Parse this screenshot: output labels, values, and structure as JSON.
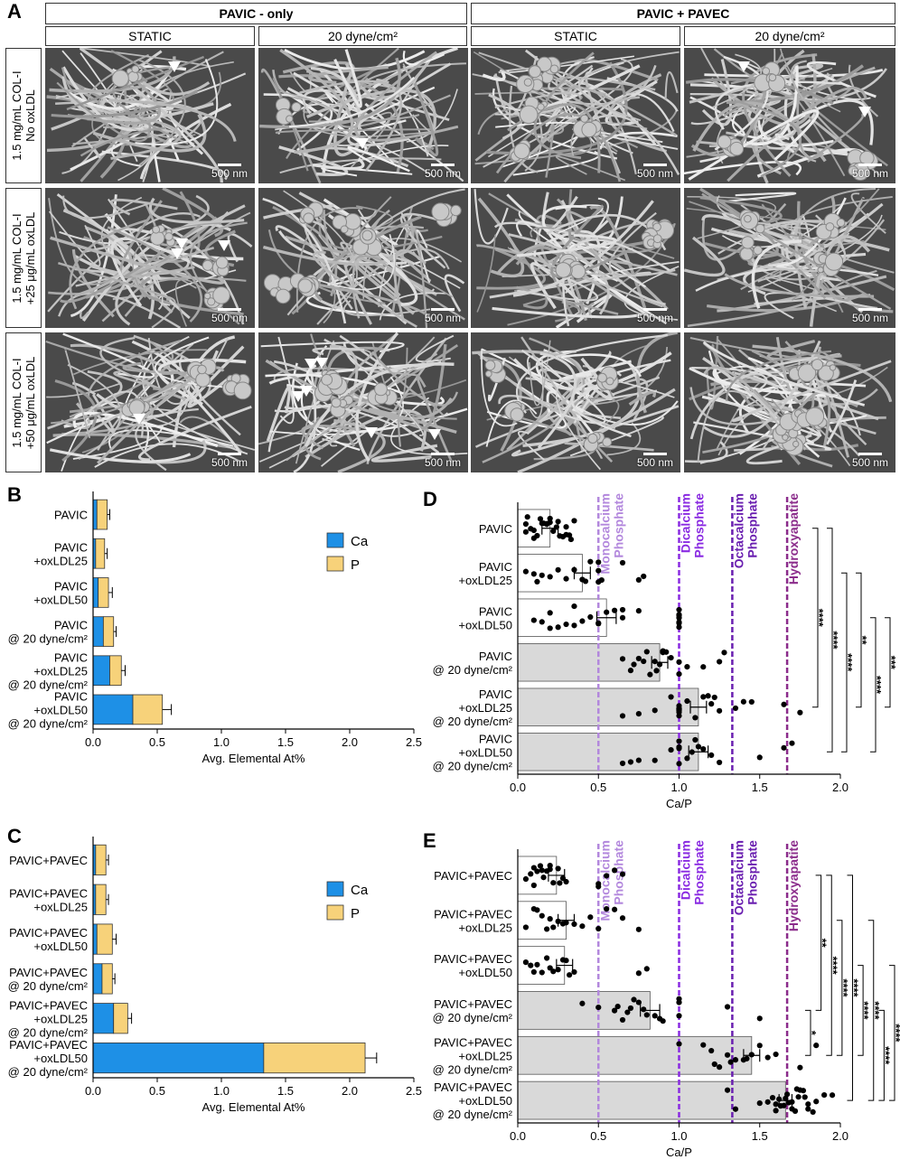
{
  "panels": {
    "a": "A",
    "b": "B",
    "c": "C",
    "d": "D",
    "e": "E"
  },
  "sem_grid": {
    "group_headers": [
      "PAVIC - only",
      "PAVIC + PAVEC"
    ],
    "condition_headers": [
      "STATIC",
      "20 dyne/cm²",
      "STATIC",
      "20 dyne/cm²"
    ],
    "row_labels": [
      [
        "1.5 mg/mL COL-I",
        "No oxLDL"
      ],
      [
        "1.5 mg/mL COL-I",
        "+25 μg/mL oxLDL"
      ],
      [
        "1.5 mg/mL COL-I",
        "+50 μg/mL oxLDL"
      ]
    ],
    "scale_bar": "500 nm",
    "arrowheads_per_image": [
      [
        1,
        1,
        0,
        2
      ],
      [
        3,
        0,
        0,
        0
      ],
      [
        1,
        6,
        0,
        0
      ]
    ]
  },
  "chart_data": [
    {
      "id": "B",
      "type": "bar",
      "orientation": "horizontal",
      "stacked": true,
      "categories": [
        [
          "PAVIC"
        ],
        [
          "PAVIC",
          "+oxLDL25"
        ],
        [
          "PAVIC",
          "+oxLDL50"
        ],
        [
          "PAVIC",
          "@ 20 dyne/cm²"
        ],
        [
          "PAVIC",
          "+oxLDL25",
          "@ 20 dyne/cm²"
        ],
        [
          "PAVIC",
          "+oxLDL50",
          "@ 20 dyne/cm²"
        ]
      ],
      "series": [
        {
          "name": "Ca",
          "color": "#1e90e6",
          "values": [
            0.03,
            0.02,
            0.04,
            0.08,
            0.13,
            0.31
          ],
          "error": [
            0.01,
            0.01,
            0.02,
            0.04,
            0.05,
            0.12
          ]
        },
        {
          "name": "P",
          "color": "#f7d27a",
          "values": [
            0.08,
            0.07,
            0.08,
            0.08,
            0.09,
            0.23
          ],
          "error": [
            0.02,
            0.02,
            0.03,
            0.02,
            0.03,
            0.07
          ]
        }
      ],
      "xlabel": "Avg. Elemental At%",
      "xlim": [
        0,
        2.5
      ],
      "xticks": [
        "0.0",
        "0.5",
        "1.0",
        "1.5",
        "2.0",
        "2.5"
      ],
      "legend": "right"
    },
    {
      "id": "C",
      "type": "bar",
      "orientation": "horizontal",
      "stacked": true,
      "categories": [
        [
          "PAVIC+PAVEC"
        ],
        [
          "PAVIC+PAVEC",
          "+oxLDL25"
        ],
        [
          "PAVIC+PAVEC",
          "+oxLDL50"
        ],
        [
          "PAVIC+PAVEC",
          "@ 20 dyne/cm²"
        ],
        [
          "PAVIC+PAVEC",
          "+oxLDL25",
          "@ 20 dyne/cm²"
        ],
        [
          "PAVIC+PAVEC",
          "+oxLDL50",
          "@ 20 dyne/cm²"
        ]
      ],
      "series": [
        {
          "name": "Ca",
          "color": "#1e90e6",
          "values": [
            0.02,
            0.02,
            0.03,
            0.07,
            0.16,
            1.33
          ],
          "error": [
            0.01,
            0.01,
            0.02,
            0.03,
            0.04,
            0.13
          ]
        },
        {
          "name": "P",
          "color": "#f7d27a",
          "values": [
            0.08,
            0.08,
            0.12,
            0.08,
            0.11,
            0.79
          ],
          "error": [
            0.02,
            0.02,
            0.03,
            0.02,
            0.03,
            0.09
          ]
        }
      ],
      "xlabel": "Avg. Elemental At%",
      "xlim": [
        0,
        2.5
      ],
      "xticks": [
        "0.0",
        "0.5",
        "1.0",
        "1.5",
        "2.0",
        "2.5"
      ],
      "legend": "right"
    },
    {
      "id": "D",
      "type": "bar",
      "orientation": "horizontal",
      "categories": [
        [
          "PAVIC"
        ],
        [
          "PAVIC",
          "+oxLDL25"
        ],
        [
          "PAVIC",
          "+oxLDL50"
        ],
        [
          "PAVIC",
          "@ 20 dyne/cm²"
        ],
        [
          "PAVIC",
          "+oxLDL25",
          "@ 20 dyne/cm²"
        ],
        [
          "PAVIC",
          "+oxLDL50",
          "@ 20 dyne/cm²"
        ]
      ],
      "bar_colors": [
        "#ffffff",
        "#ffffff",
        "#ffffff",
        "#d9d9d9",
        "#d9d9d9",
        "#d9d9d9"
      ],
      "means": [
        0.2,
        0.4,
        0.55,
        0.88,
        1.12,
        1.12
      ],
      "error": [
        0.05,
        0.05,
        0.06,
        0.05,
        0.05,
        0.06
      ],
      "points": [
        [
          0.05,
          0.1,
          0.15,
          0.2,
          0.25,
          0.3,
          0.35,
          0.05,
          0.12,
          0.18,
          0.22,
          0.28,
          0.33,
          0.08,
          0.16,
          0.24,
          0.3,
          0.1,
          0.2,
          0.26,
          0.14,
          0.32,
          0.06,
          0.18
        ],
        [
          0.05,
          0.1,
          0.15,
          0.2,
          0.3,
          0.35,
          0.42,
          0.45,
          0.5,
          0.5,
          0.5,
          0.65,
          0.75,
          0.78,
          0.12,
          0.25,
          0.4,
          0.52
        ],
        [
          0.1,
          0.15,
          0.2,
          0.25,
          0.3,
          0.35,
          0.4,
          0.45,
          0.5,
          0.55,
          0.6,
          0.65,
          0.75,
          1.0,
          1.0,
          1.0,
          1.0,
          1.0,
          1.0,
          1.0,
          0.2,
          0.35,
          0.5,
          0.65
        ],
        [
          0.65,
          0.7,
          0.75,
          0.8,
          0.85,
          0.86,
          0.88,
          0.9,
          0.92,
          0.95,
          1.0,
          1.0,
          1.05,
          1.15,
          1.25,
          1.28,
          0.72,
          0.78,
          0.82,
          0.9
        ],
        [
          0.65,
          0.75,
          0.85,
          0.95,
          1.0,
          1.0,
          1.0,
          1.0,
          1.0,
          1.0,
          1.0,
          1.0,
          1.1,
          1.15,
          1.2,
          1.25,
          1.35,
          1.4,
          1.45,
          1.65,
          1.75,
          1.05,
          1.18,
          1.22
        ],
        [
          0.65,
          0.7,
          0.75,
          0.85,
          0.95,
          1.0,
          1.0,
          1.0,
          1.0,
          1.05,
          1.1,
          1.15,
          1.2,
          1.25,
          1.5,
          1.65,
          1.7,
          1.08,
          1.12
        ]
      ],
      "reference_lines": [
        {
          "x": 0.5,
          "label": [
            "Monocalcium",
            "Phosphate"
          ],
          "color": "#b388dd"
        },
        {
          "x": 1.0,
          "label": [
            "Dicalcium",
            "Phosphate"
          ],
          "color": "#8a2be2"
        },
        {
          "x": 1.33,
          "label": [
            "Octacalcium",
            "Phosphate"
          ],
          "color": "#6a1fb0"
        },
        {
          "x": 1.67,
          "label": [
            "Hydroxyapatite"
          ],
          "color": "#8b2c8b"
        }
      ],
      "significance": [
        {
          "from": 0,
          "to": 4,
          "stars": "****"
        },
        {
          "from": 0,
          "to": 5,
          "stars": "****"
        },
        {
          "from": 1,
          "to": 5,
          "stars": "****"
        },
        {
          "from": 1,
          "to": 4,
          "stars": "**"
        },
        {
          "from": 2,
          "to": 5,
          "stars": "****"
        },
        {
          "from": 2,
          "to": 4,
          "stars": "***"
        }
      ],
      "xlabel": "Ca/P",
      "xlim": [
        0,
        2.0
      ],
      "xticks": [
        "0.0",
        "0.5",
        "1.0",
        "1.5",
        "2.0"
      ]
    },
    {
      "id": "E",
      "type": "bar",
      "orientation": "horizontal",
      "categories": [
        [
          "PAVIC+PAVEC"
        ],
        [
          "PAVIC+PAVEC",
          "+oxLDL25"
        ],
        [
          "PAVIC+PAVEC",
          "+oxLDL50"
        ],
        [
          "PAVIC+PAVEC",
          "@ 20 dyne/cm²"
        ],
        [
          "PAVIC+PAVEC",
          "+oxLDL25",
          "@ 20 dyne/cm²"
        ],
        [
          "PAVIC+PAVEC",
          "+oxLDL50",
          "@ 20 dyne/cm²"
        ]
      ],
      "bar_colors": [
        "#ffffff",
        "#ffffff",
        "#ffffff",
        "#d9d9d9",
        "#d9d9d9",
        "#d9d9d9"
      ],
      "means": [
        0.24,
        0.3,
        0.29,
        0.82,
        1.45,
        1.66
      ],
      "error": [
        0.05,
        0.05,
        0.05,
        0.06,
        0.05,
        0.04
      ],
      "points": [
        [
          0.05,
          0.1,
          0.15,
          0.2,
          0.25,
          0.3,
          0.1,
          0.18,
          0.22,
          0.12,
          0.28,
          0.5,
          0.5,
          0.55,
          0.6,
          0.65,
          0.08,
          0.16,
          0.2,
          0.26,
          0.14
        ],
        [
          0.05,
          0.1,
          0.15,
          0.2,
          0.25,
          0.3,
          0.35,
          0.4,
          0.45,
          0.5,
          0.55,
          0.6,
          0.65,
          0.75,
          0.12,
          0.22,
          0.28,
          0.18
        ],
        [
          0.05,
          0.1,
          0.15,
          0.2,
          0.25,
          0.3,
          0.32,
          0.35,
          0.75,
          0.8,
          0.12,
          0.22,
          0.28,
          0.18,
          0.08
        ],
        [
          0.4,
          0.5,
          0.6,
          0.65,
          0.7,
          0.75,
          0.8,
          0.85,
          0.9,
          1.0,
          1.0,
          1.0,
          1.3,
          1.5,
          0.62,
          0.72,
          0.78,
          0.88,
          0.68
        ],
        [
          1.0,
          1.15,
          1.2,
          1.25,
          1.3,
          1.35,
          1.4,
          1.45,
          1.5,
          1.55,
          1.6,
          1.75,
          1.85,
          1.22,
          1.32,
          1.42
        ],
        [
          1.3,
          1.35,
          1.5,
          1.55,
          1.6,
          1.62,
          1.65,
          1.68,
          1.7,
          1.72,
          1.75,
          1.78,
          1.8,
          1.85,
          1.9,
          1.95,
          1.58,
          1.63,
          1.67,
          1.73,
          1.77,
          1.83,
          1.6,
          1.7,
          1.8,
          1.66,
          1.74
        ]
      ],
      "reference_lines": [
        {
          "x": 0.5,
          "label": [
            "Monocalcium",
            "Phosphate"
          ],
          "color": "#b388dd"
        },
        {
          "x": 1.0,
          "label": [
            "Dicalcium",
            "Phosphate"
          ],
          "color": "#8a2be2"
        },
        {
          "x": 1.33,
          "label": [
            "Octacalcium",
            "Phosphate"
          ],
          "color": "#6a1fb0"
        },
        {
          "x": 1.67,
          "label": [
            "Hydroxyapatite"
          ],
          "color": "#8b2c8b"
        }
      ],
      "significance": [
        {
          "from": 3,
          "to": 4,
          "stars": "*"
        },
        {
          "from": 0,
          "to": 3,
          "stars": "**"
        },
        {
          "from": 0,
          "to": 4,
          "stars": "****"
        },
        {
          "from": 1,
          "to": 4,
          "stars": "****"
        },
        {
          "from": 0,
          "to": 5,
          "stars": "****"
        },
        {
          "from": 2,
          "to": 4,
          "stars": "****"
        },
        {
          "from": 1,
          "to": 5,
          "stars": "****"
        },
        {
          "from": 3,
          "to": 5,
          "stars": "****"
        },
        {
          "from": 2,
          "to": 5,
          "stars": "****"
        }
      ],
      "xlabel": "Ca/P",
      "xlim": [
        0,
        2.0
      ],
      "xticks": [
        "0.0",
        "0.5",
        "1.0",
        "1.5",
        "2.0"
      ]
    }
  ]
}
